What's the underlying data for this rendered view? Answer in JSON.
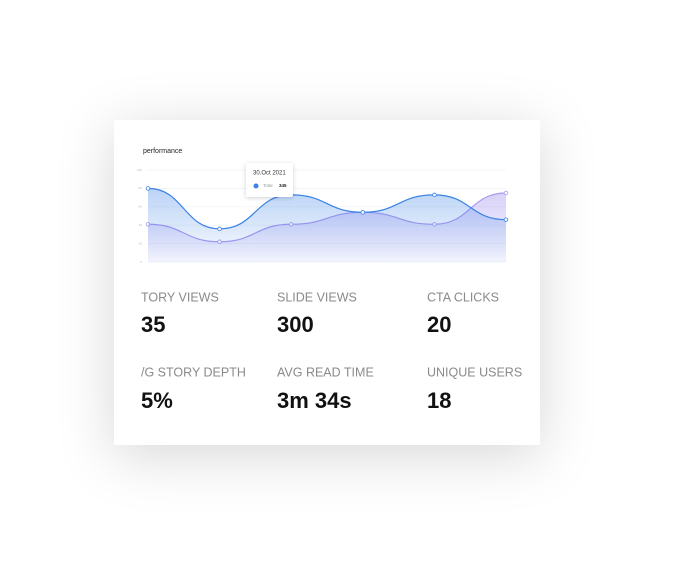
{
  "chart_data": {
    "type": "line",
    "title": "performance",
    "categories": [
      null,
      null,
      null,
      null,
      null,
      null
    ],
    "series": [
      {
        "name": "Total",
        "color": "#3b82e6",
        "values": [
          80,
          36,
          73,
          54,
          73,
          46
        ]
      },
      {
        "name": null,
        "color": "#a99af0",
        "values": [
          41,
          22,
          41,
          54,
          41,
          75
        ]
      }
    ],
    "ylim": [
      0,
      100
    ],
    "yticks": [
      0,
      20,
      40,
      60,
      80,
      100
    ],
    "grid": true,
    "tooltip": {
      "date": "30.Oct 2021",
      "label": "Total",
      "value": "345"
    }
  },
  "stats": [
    {
      "label": "TORY VIEWS",
      "value": "35"
    },
    {
      "label": "SLIDE VIEWS",
      "value": "300"
    },
    {
      "label": "CTA CLICKS",
      "value": "20"
    },
    {
      "label": "/G  STORY DEPTH",
      "value": "5%"
    },
    {
      "label": "AVG READ TIME",
      "value": "3m 34s"
    },
    {
      "label": "UNIQUE USERS",
      "value": "18"
    }
  ]
}
